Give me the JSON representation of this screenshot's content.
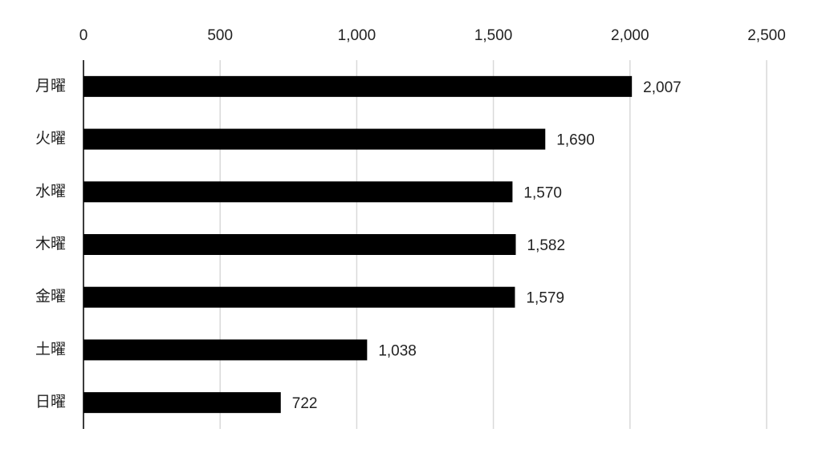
{
  "chart_data": {
    "type": "bar",
    "orientation": "horizontal",
    "categories": [
      "月曜",
      "火曜",
      "水曜",
      "木曜",
      "金曜",
      "土曜",
      "日曜"
    ],
    "values": [
      2007,
      1690,
      1570,
      1582,
      1579,
      1038,
      722
    ],
    "value_labels": [
      "2,007",
      "1,690",
      "1,570",
      "1,582",
      "1,579",
      "1,038",
      "722"
    ],
    "color": "#000000",
    "xlim": [
      0,
      2500
    ],
    "xticks": [
      0,
      500,
      {
        "value": 1000,
        "label": "1,000"
      },
      {
        "value": 1500,
        "label": "1,500"
      },
      {
        "value": 2000,
        "label": "2,000"
      },
      {
        "value": 2500,
        "label": "2,500"
      }
    ],
    "grid": true
  }
}
